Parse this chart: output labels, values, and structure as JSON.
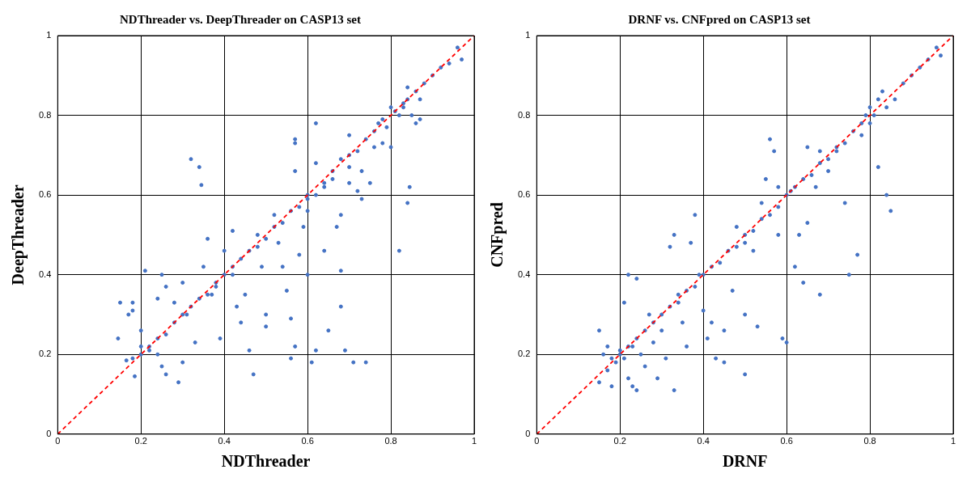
{
  "chart_data": [
    {
      "type": "scatter",
      "title": "NDThreader vs. DeepThreader on CASP13 set",
      "xlabel": "NDThreader",
      "ylabel": "DeepThreader",
      "xlim": [
        0,
        1
      ],
      "ylim": [
        0,
        1
      ],
      "xticks": [
        0,
        0.2,
        0.4,
        0.6,
        0.8,
        1
      ],
      "yticks": [
        0,
        0.2,
        0.4,
        0.6,
        0.8,
        1
      ],
      "grid": true,
      "marker": "circle",
      "series": [
        {
          "type": "scatter",
          "color": "#4472c4",
          "x": [
            0.32,
            0.34,
            0.345,
            0.57,
            0.57,
            0.57,
            0.6,
            0.82,
            0.845,
            0.84,
            0.62,
            0.7,
            0.87,
            0.145,
            0.15,
            0.18,
            0.18,
            0.17,
            0.2,
            0.165,
            0.18,
            0.185,
            0.21,
            0.2,
            0.22,
            0.24,
            0.25,
            0.26,
            0.24,
            0.25,
            0.26,
            0.29,
            0.3,
            0.28,
            0.3,
            0.31,
            0.33,
            0.35,
            0.36,
            0.37,
            0.38,
            0.39,
            0.4,
            0.42,
            0.42,
            0.43,
            0.44,
            0.45,
            0.46,
            0.47,
            0.48,
            0.49,
            0.5,
            0.5,
            0.52,
            0.53,
            0.54,
            0.55,
            0.56,
            0.56,
            0.57,
            0.58,
            0.59,
            0.6,
            0.6,
            0.61,
            0.62,
            0.64,
            0.65,
            0.67,
            0.68,
            0.69,
            0.71,
            0.74,
            0.68,
            0.64,
            0.66,
            0.68,
            0.7,
            0.72,
            0.73,
            0.76,
            0.78,
            0.8,
            0.75,
            0.77,
            0.79,
            0.81,
            0.83,
            0.84,
            0.85,
            0.86,
            0.88,
            0.9,
            0.92,
            0.94,
            0.96,
            0.97,
            0.82,
            0.8,
            0.78,
            0.76,
            0.74,
            0.72,
            0.7,
            0.68,
            0.66,
            0.64,
            0.62,
            0.6,
            0.58,
            0.56,
            0.54,
            0.52,
            0.5,
            0.48,
            0.46,
            0.44,
            0.42,
            0.4,
            0.38,
            0.36,
            0.34,
            0.32,
            0.3,
            0.28,
            0.26,
            0.24,
            0.22,
            0.2,
            0.62,
            0.7,
            0.73,
            0.84,
            0.87,
            0.86,
            0.83
          ],
          "values": [
            0.69,
            0.67,
            0.625,
            0.74,
            0.73,
            0.66,
            0.6,
            0.46,
            0.62,
            0.58,
            0.78,
            0.75,
            0.79,
            0.24,
            0.33,
            0.33,
            0.31,
            0.3,
            0.26,
            0.185,
            0.19,
            0.145,
            0.41,
            0.22,
            0.21,
            0.2,
            0.4,
            0.37,
            0.34,
            0.17,
            0.15,
            0.13,
            0.18,
            0.33,
            0.38,
            0.3,
            0.23,
            0.42,
            0.49,
            0.35,
            0.37,
            0.24,
            0.46,
            0.51,
            0.4,
            0.32,
            0.28,
            0.35,
            0.21,
            0.15,
            0.5,
            0.42,
            0.3,
            0.27,
            0.55,
            0.48,
            0.42,
            0.36,
            0.29,
            0.19,
            0.22,
            0.45,
            0.52,
            0.56,
            0.4,
            0.18,
            0.21,
            0.46,
            0.26,
            0.52,
            0.32,
            0.21,
            0.18,
            0.18,
            0.41,
            0.62,
            0.66,
            0.55,
            0.63,
            0.61,
            0.59,
            0.72,
            0.73,
            0.72,
            0.63,
            0.78,
            0.77,
            0.81,
            0.83,
            0.84,
            0.8,
            0.86,
            0.88,
            0.9,
            0.92,
            0.93,
            0.97,
            0.94,
            0.8,
            0.82,
            0.79,
            0.76,
            0.74,
            0.71,
            0.7,
            0.69,
            0.64,
            0.63,
            0.6,
            0.59,
            0.57,
            0.56,
            0.53,
            0.52,
            0.49,
            0.47,
            0.46,
            0.44,
            0.42,
            0.4,
            0.38,
            0.35,
            0.34,
            0.32,
            0.3,
            0.28,
            0.25,
            0.24,
            0.22,
            0.2,
            0.68,
            0.67,
            0.66,
            0.87,
            0.84,
            0.78,
            0.82
          ]
        },
        {
          "type": "line",
          "color": "#ff0000",
          "line_style": "dashed",
          "marker": "none",
          "x": [
            0,
            1
          ],
          "values": [
            0,
            1
          ]
        }
      ]
    },
    {
      "type": "scatter",
      "title": "DRNF vs. CNFpred on CASP13 set",
      "xlabel": "DRNF",
      "ylabel": "CNFpred",
      "xlim": [
        0,
        1
      ],
      "ylim": [
        0,
        1
      ],
      "xticks": [
        0,
        0.2,
        0.4,
        0.6,
        0.8,
        1
      ],
      "yticks": [
        0,
        0.2,
        0.4,
        0.6,
        0.8,
        1
      ],
      "grid": true,
      "marker": "circle",
      "series": [
        {
          "type": "scatter",
          "color": "#4472c4",
          "x": [
            0.15,
            0.15,
            0.16,
            0.17,
            0.18,
            0.19,
            0.2,
            0.21,
            0.21,
            0.22,
            0.23,
            0.23,
            0.24,
            0.22,
            0.24,
            0.25,
            0.26,
            0.27,
            0.28,
            0.29,
            0.3,
            0.31,
            0.32,
            0.33,
            0.34,
            0.35,
            0.36,
            0.37,
            0.38,
            0.39,
            0.4,
            0.41,
            0.42,
            0.43,
            0.45,
            0.47,
            0.48,
            0.5,
            0.5,
            0.5,
            0.52,
            0.53,
            0.54,
            0.55,
            0.56,
            0.57,
            0.58,
            0.58,
            0.59,
            0.6,
            0.61,
            0.62,
            0.63,
            0.64,
            0.65,
            0.67,
            0.68,
            0.7,
            0.72,
            0.74,
            0.75,
            0.77,
            0.78,
            0.8,
            0.82,
            0.84,
            0.85,
            0.83,
            0.86,
            0.88,
            0.9,
            0.92,
            0.94,
            0.96,
            0.97,
            0.8,
            0.78,
            0.76,
            0.74,
            0.72,
            0.7,
            0.68,
            0.66,
            0.64,
            0.62,
            0.6,
            0.58,
            0.56,
            0.54,
            0.52,
            0.5,
            0.48,
            0.46,
            0.44,
            0.42,
            0.4,
            0.38,
            0.36,
            0.34,
            0.32,
            0.3,
            0.28,
            0.26,
            0.24,
            0.22,
            0.2,
            0.18,
            0.17,
            0.82,
            0.84,
            0.81,
            0.79,
            0.65,
            0.68,
            0.45,
            0.33
          ],
          "values": [
            0.13,
            0.26,
            0.2,
            0.22,
            0.12,
            0.18,
            0.21,
            0.19,
            0.33,
            0.14,
            0.12,
            0.22,
            0.11,
            0.4,
            0.39,
            0.2,
            0.17,
            0.3,
            0.23,
            0.14,
            0.26,
            0.19,
            0.47,
            0.5,
            0.35,
            0.28,
            0.22,
            0.48,
            0.55,
            0.4,
            0.31,
            0.24,
            0.28,
            0.19,
            0.26,
            0.36,
            0.52,
            0.48,
            0.3,
            0.15,
            0.46,
            0.27,
            0.58,
            0.64,
            0.74,
            0.71,
            0.62,
            0.5,
            0.24,
            0.23,
            0.61,
            0.42,
            0.5,
            0.38,
            0.53,
            0.62,
            0.35,
            0.66,
            0.71,
            0.58,
            0.4,
            0.45,
            0.75,
            0.82,
            0.67,
            0.6,
            0.56,
            0.86,
            0.84,
            0.88,
            0.9,
            0.92,
            0.94,
            0.97,
            0.95,
            0.78,
            0.78,
            0.76,
            0.73,
            0.72,
            0.69,
            0.68,
            0.65,
            0.64,
            0.62,
            0.6,
            0.57,
            0.55,
            0.54,
            0.51,
            0.5,
            0.47,
            0.46,
            0.43,
            0.42,
            0.4,
            0.37,
            0.36,
            0.33,
            0.32,
            0.3,
            0.28,
            0.26,
            0.24,
            0.22,
            0.2,
            0.19,
            0.16,
            0.84,
            0.82,
            0.8,
            0.8,
            0.72,
            0.71,
            0.18,
            0.11
          ]
        },
        {
          "type": "line",
          "color": "#ff0000",
          "line_style": "dashed",
          "marker": "none",
          "x": [
            0,
            1
          ],
          "values": [
            0,
            1
          ]
        }
      ]
    }
  ]
}
